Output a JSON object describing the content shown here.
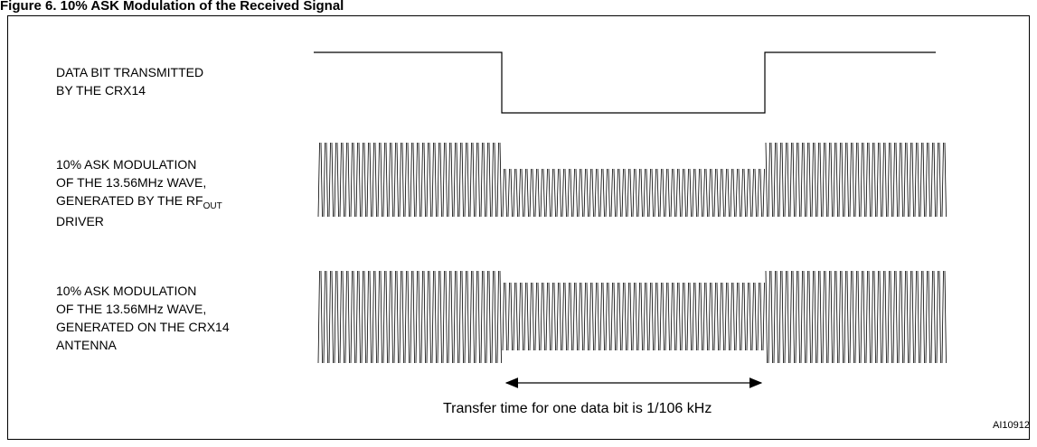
{
  "figure": {
    "caption": "Figure 6. 10% ASK Modulation of the Received Signal",
    "reference": "AI10912"
  },
  "signals": [
    {
      "id": "data-bit",
      "lines": [
        "DATA BIT TRANSMITTED",
        "BY THE CRX14"
      ]
    },
    {
      "id": "rf-out",
      "lines": [
        "10% ASK MODULATION",
        "OF THE 13.56MHz  WAVE,",
        "GENERATED BY THE RF",
        "DRIVER"
      ],
      "subscript": "OUT"
    },
    {
      "id": "antenna",
      "lines": [
        "10% ASK MODULATION",
        "OF THE 13.56MHz  WAVE,",
        "GENERATED ON THE CRX14",
        "ANTENNA"
      ]
    }
  ],
  "timing_note": "Transfer time for one data bit is 1/106 kHz",
  "modulation": {
    "depth_percent": 10,
    "carrier": "13.56MHz"
  }
}
